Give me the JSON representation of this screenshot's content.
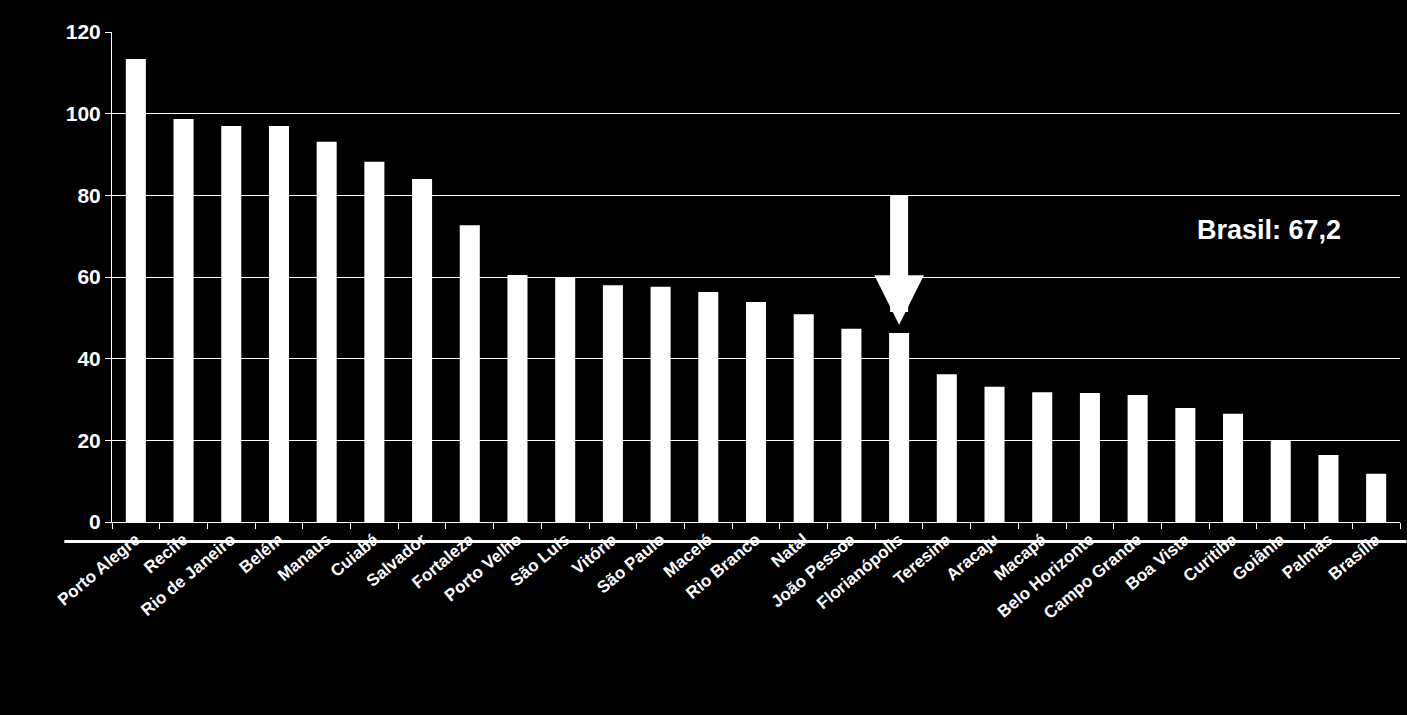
{
  "chart_data": {
    "type": "bar",
    "categories": [
      "Porto Alegre",
      "Recife",
      "Rio de Janeiro",
      "Belém",
      "Manaus",
      "Cuiabá",
      "Salvador",
      "Fortaleza",
      "Porto Velho",
      "São Luís",
      "Vitória",
      "São Paulo",
      "Maceió",
      "Rio Branco",
      "Natal",
      "João Pessoa",
      "Florianópolis",
      "Teresina",
      "Aracaju",
      "Macapá",
      "Belo Horizonte",
      "Campo Grande",
      "Boa Vista",
      "Curitiba",
      "Goiânia",
      "Palmas",
      "Brasília"
    ],
    "values": [
      113.4,
      98.7,
      97.0,
      97.0,
      93.1,
      88.2,
      84.0,
      72.7,
      60.5,
      59.8,
      58.0,
      57.6,
      56.3,
      53.9,
      50.9,
      47.3,
      46.3,
      36.2,
      33.1,
      31.8,
      31.6,
      31.1,
      27.9,
      26.5,
      20.1,
      16.4,
      11.8
    ],
    "color": "#ffffff",
    "ylim": [
      0,
      120
    ],
    "yticks": [
      0,
      20,
      40,
      60,
      80,
      100,
      120
    ],
    "grid": true,
    "annotation": "Brasil: 67,2"
  }
}
